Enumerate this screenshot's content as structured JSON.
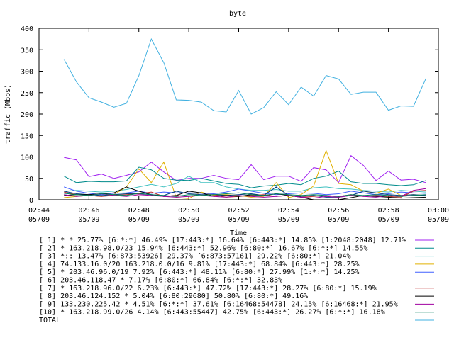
{
  "chart_data": {
    "type": "line",
    "title": "byte",
    "xlabel": "Time",
    "ylabel": "traffic (Mbps)",
    "ylim": [
      0,
      400
    ],
    "yticks": [
      "0",
      "50",
      "100",
      "150",
      "200",
      "250",
      "300",
      "350",
      "400"
    ],
    "xlim": [
      "02:44",
      "03:00"
    ],
    "xticks": [
      {
        "time": "02:44",
        "date": "05/09"
      },
      {
        "time": "02:46",
        "date": "05/09"
      },
      {
        "time": "02:48",
        "date": "05/09"
      },
      {
        "time": "02:50",
        "date": "05/09"
      },
      {
        "time": "02:52",
        "date": "05/09"
      },
      {
        "time": "02:54",
        "date": "05/09"
      },
      {
        "time": "02:56",
        "date": "05/09"
      },
      {
        "time": "02:58",
        "date": "05/09"
      },
      {
        "time": "03:00",
        "date": "05/09"
      }
    ],
    "grid": false,
    "legend_position": "bottom",
    "x": [
      "02:45:00",
      "02:45:30",
      "02:46:00",
      "02:46:30",
      "02:47:00",
      "02:47:30",
      "02:48:00",
      "02:48:30",
      "02:49:00",
      "02:49:30",
      "02:50:00",
      "02:50:30",
      "02:51:00",
      "02:51:30",
      "02:52:00",
      "02:52:30",
      "02:53:00",
      "02:53:30",
      "02:54:00",
      "02:54:30",
      "02:55:00",
      "02:55:30",
      "02:56:00",
      "02:56:30",
      "02:57:00",
      "02:57:30",
      "02:58:00",
      "02:58:30",
      "02:59:00",
      "02:59:30"
    ],
    "series": [
      {
        "name": "[ 1] * * 25.77%  [6:*:*] 46.49% [17:443:*] 16.64% [6:443:*] 14.85% [1:2048:2048] 12.71%",
        "color": "#a020f0",
        "values": [
          99,
          93,
          54,
          60,
          50,
          57,
          65,
          88,
          65,
          45,
          50,
          50,
          57,
          50,
          47,
          82,
          47,
          55,
          55,
          43,
          75,
          70,
          40,
          103,
          80,
          45,
          67,
          46,
          48,
          40
        ]
      },
      {
        "name": "[ 2] * 163.218.98.0/23 15.94%  [6:443:*] 52.96% [6:80:*] 16.67% [6:*:*] 14.55%",
        "color": "#008b8b",
        "values": [
          55,
          40,
          43,
          42,
          42,
          44,
          76,
          70,
          50,
          46,
          45,
          50,
          44,
          38,
          36,
          28,
          32,
          34,
          38,
          35,
          50,
          55,
          67,
          42,
          38,
          38,
          35,
          33,
          35,
          45
        ]
      },
      {
        "name": "[ 3] *:: 13.47%  [6:873:53926] 29.37% [6:873:57161] 29.22% [6:80:*] 21.04%",
        "color": "#40c0c0",
        "values": [
          20,
          22,
          20,
          18,
          20,
          24,
          30,
          36,
          30,
          38,
          55,
          40,
          40,
          30,
          25,
          22,
          22,
          24,
          20,
          20,
          28,
          30,
          26,
          25,
          22,
          20,
          18,
          22,
          20,
          18
        ]
      },
      {
        "name": "[ 4] 74.133.16.0/20 163.218.0.0/16 9.81%  [17:443:*] 68.84% [6:443:*] 28.25%",
        "color": "#e0b000",
        "values": [
          5,
          8,
          10,
          8,
          12,
          30,
          72,
          40,
          88,
          5,
          3,
          18,
          10,
          12,
          10,
          6,
          8,
          40,
          5,
          12,
          32,
          115,
          38,
          35,
          20,
          15,
          25,
          10,
          12,
          10
        ]
      },
      {
        "name": "[ 5] * 203.46.96.0/19 7.92%  [6:443:*] 48.11% [6:80:*] 27.99% [1:*:*] 14.25%",
        "color": "#4060ff",
        "values": [
          30,
          20,
          15,
          12,
          15,
          16,
          20,
          15,
          18,
          16,
          16,
          15,
          14,
          18,
          25,
          20,
          15,
          12,
          14,
          16,
          15,
          12,
          14,
          20,
          16,
          12,
          14,
          18,
          16,
          15
        ]
      },
      {
        "name": "[ 6] 203.46.118.47 * 7.17%  [6:80:*] 66.84% [6:*:*] 32.83%",
        "color": "#003f7f",
        "values": [
          20,
          14,
          12,
          10,
          12,
          14,
          14,
          12,
          10,
          20,
          14,
          12,
          12,
          10,
          12,
          14,
          10,
          30,
          10,
          8,
          10,
          6,
          6,
          10,
          20,
          16,
          12,
          10,
          12,
          10
        ]
      },
      {
        "name": "[ 7] * 163.218.96.0/22 6.23%  [6:443:*] 47.72% [17:443:*] 28.27% [6:80:*] 15.19%",
        "color": "#c03030",
        "values": [
          18,
          12,
          10,
          8,
          10,
          12,
          14,
          18,
          8,
          10,
          8,
          10,
          12,
          6,
          8,
          10,
          12,
          8,
          10,
          6,
          8,
          10,
          8,
          12,
          8,
          10,
          8,
          6,
          20,
          22
        ]
      },
      {
        "name": "[ 8] 203.46.124.152 * 5.04%  [6:80:29680] 50.80% [6:80:*] 49.16%",
        "color": "#000000",
        "values": [
          10,
          12,
          12,
          14,
          16,
          30,
          20,
          12,
          8,
          10,
          20,
          16,
          8,
          10,
          8,
          12,
          10,
          14,
          10,
          6,
          0,
          0,
          0,
          5,
          10,
          8,
          6,
          4,
          5,
          6
        ]
      },
      {
        "name": "[ 9] 133.230.225.42 * 4.51%  [6:*:*] 37.61% [6:16468:54478] 24.15% [6:16468:*] 21.95%",
        "color": "#a000a0",
        "values": [
          12,
          8,
          10,
          14,
          10,
          8,
          12,
          10,
          8,
          6,
          8,
          10,
          8,
          6,
          10,
          8,
          6,
          8,
          10,
          6,
          4,
          8,
          6,
          10,
          8,
          6,
          10,
          8,
          22,
          26
        ]
      },
      {
        "name": "[10] * 163.218.99.0/26 4.14%  [6:443:55447] 42.75% [6:443:*] 26.27% [6:*:*] 16.18%",
        "color": "#007f5f",
        "values": [
          15,
          12,
          10,
          14,
          12,
          10,
          15,
          12,
          10,
          8,
          12,
          10,
          12,
          14,
          16,
          12,
          10,
          14,
          12,
          10,
          12,
          10,
          8,
          12,
          10,
          12,
          10,
          8,
          10,
          12
        ]
      },
      {
        "name": "TOTAL",
        "color": "#40b0e0",
        "values": [
          328,
          275,
          238,
          228,
          216,
          225,
          290,
          375,
          320,
          233,
          232,
          228,
          208,
          205,
          255,
          200,
          215,
          252,
          222,
          263,
          242,
          290,
          282,
          246,
          251,
          251,
          209,
          219,
          218,
          283
        ]
      }
    ]
  }
}
